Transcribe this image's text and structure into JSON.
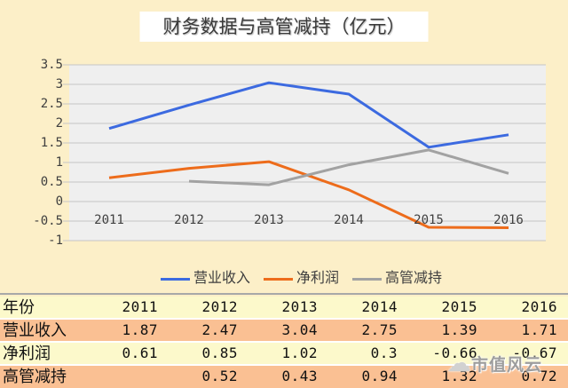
{
  "title": "财务数据与高管减持（亿元）",
  "chart_data": {
    "type": "line",
    "categories": [
      "2011",
      "2012",
      "2013",
      "2014",
      "2015",
      "2016"
    ],
    "series": [
      {
        "name": "营业收入",
        "color": "#3c6ae0",
        "values": [
          1.87,
          2.47,
          3.04,
          2.75,
          1.39,
          1.71
        ]
      },
      {
        "name": "净利润",
        "color": "#ed6c1b",
        "values": [
          0.61,
          0.85,
          1.02,
          0.3,
          -0.66,
          -0.67
        ]
      },
      {
        "name": "高管减持",
        "color": "#a2a2a2",
        "values": [
          null,
          0.52,
          0.43,
          0.94,
          1.32,
          0.72
        ]
      }
    ],
    "ylim": [
      -1,
      3.5
    ],
    "yticks": [
      "3.5",
      "3",
      "2.5",
      "2",
      "1.5",
      "1",
      "0.5",
      "0",
      "-0.5",
      "-1"
    ],
    "grid": true,
    "legend_position": "bottom",
    "plot_background": "#efefef",
    "grid_color": "#c6c6c6"
  },
  "table": {
    "header": {
      "label": "年份",
      "values": [
        "2011",
        "2012",
        "2013",
        "2014",
        "2015",
        "2016"
      ]
    },
    "rows": [
      {
        "label": "营业收入",
        "values": [
          "1.87",
          "2.47",
          "3.04",
          "2.75",
          "1.39",
          "1.71"
        ]
      },
      {
        "label": "净利润",
        "values": [
          "0.61",
          "0.85",
          "1.02",
          "0.3",
          "-0.66",
          "-0.67"
        ]
      },
      {
        "label": "高管减持",
        "values": [
          "",
          "0.52",
          "0.43",
          "0.94",
          "1.32",
          "0.72"
        ]
      }
    ],
    "row_colors": {
      "yellow": "#fcf9cb",
      "salmon": "#fac093"
    }
  },
  "watermark": {
    "icon": "cloud-icon",
    "text": "市值风云"
  },
  "colors": {
    "background": "#fcefc8",
    "title_background": "#ffffff",
    "divider": "#a8a8a8"
  }
}
